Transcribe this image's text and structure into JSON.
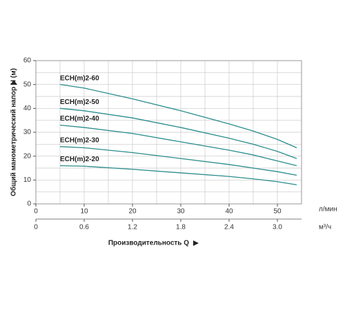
{
  "chart_data": {
    "type": "line",
    "x_label": "Производительность Q",
    "y_label": "Общий манометрический напор Н (м)",
    "x_unit": "л/мин",
    "x2_unit": "м³/ч",
    "x": [
      5,
      10,
      20,
      30,
      40,
      45,
      50,
      54
    ],
    "series": [
      {
        "name": "ECH(m)2-60",
        "color": "#2a8c8c",
        "values": [
          50,
          48.5,
          44,
          39,
          33.5,
          30.5,
          27,
          23.5
        ]
      },
      {
        "name": "ECH(m)2-50",
        "color": "#2a8c8c",
        "values": [
          40,
          39,
          36,
          32,
          27.5,
          25,
          22,
          19
        ]
      },
      {
        "name": "ECH(m)2-40",
        "color": "#2a8c8c",
        "values": [
          33,
          32,
          29.5,
          26,
          22.5,
          20.5,
          18,
          16
        ]
      },
      {
        "name": "ECH(m)2-30",
        "color": "#2a8c8c",
        "values": [
          24,
          23.5,
          21.5,
          19,
          16.5,
          15,
          13.5,
          12
        ]
      },
      {
        "name": "ECH(m)2-20",
        "color": "#2a8c8c",
        "values": [
          16,
          15.8,
          14.5,
          13,
          11.5,
          10.5,
          9.3,
          8
        ]
      }
    ],
    "xlim": [
      0,
      55
    ],
    "ylim": [
      0,
      60
    ],
    "xticks": [
      0,
      10,
      20,
      30,
      40,
      50
    ],
    "yticks": [
      0,
      10,
      20,
      30,
      40,
      50,
      60
    ],
    "x2lim": [
      0,
      3.3
    ],
    "x2ticks": [
      0,
      0.6,
      1.2,
      1.8,
      2.4,
      {
        "value": 3,
        "label": "3.0"
      }
    ],
    "xgrid": [
      0,
      5,
      10,
      15,
      20,
      25,
      30,
      35,
      40,
      45,
      50,
      55
    ],
    "ygrid": [
      0,
      5,
      10,
      15,
      20,
      25,
      30,
      35,
      40,
      45,
      50,
      55,
      60
    ]
  }
}
